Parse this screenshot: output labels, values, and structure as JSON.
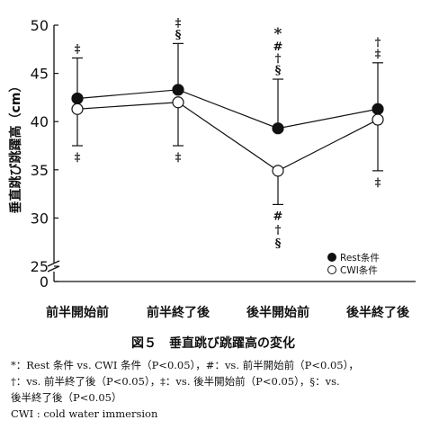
{
  "chart_data": {
    "type": "line",
    "ylabel": "垂直跳び跳躍高（cm）",
    "ylim": [
      25,
      50
    ],
    "yticks": [
      25,
      30,
      35,
      40,
      45,
      50
    ],
    "ybreak_label": "0",
    "categories": [
      "前半開始前",
      "前半終了後",
      "後半開始前",
      "後半終了後"
    ],
    "series": [
      {
        "name": "Rest条件",
        "marker": "filled",
        "values": [
          42.4,
          43.3,
          39.3,
          41.3
        ],
        "error_upper": [
          46.6,
          48.1,
          44.4,
          46.1
        ]
      },
      {
        "name": "CWI条件",
        "marker": "open",
        "values": [
          41.3,
          42.0,
          34.9,
          40.2
        ],
        "error_lower": [
          37.5,
          37.5,
          31.4,
          34.9
        ]
      }
    ],
    "annotations_above": [
      [
        "‡"
      ],
      [
        "‡",
        "§"
      ],
      [
        "*",
        "#",
        "†",
        "§"
      ],
      [
        "†",
        "‡"
      ]
    ],
    "annotations_below": [
      [
        "‡"
      ],
      [
        "‡"
      ],
      [
        "#",
        "†",
        "§"
      ],
      [
        "‡"
      ]
    ],
    "legend": "bottom-right"
  },
  "figure": {
    "title": "図５　垂直跳び跳躍高の変化",
    "note_lines": [
      "*：Rest 条件 vs. CWI 条件（P<0.05），#：vs. 前半開始前（P<0.05），",
      "†：vs. 前半終了後（P<0.05），‡：vs. 後半開始前（P<0.05），§：vs.",
      "後半終了後（P<0.05）"
    ],
    "footnote": "CWI : cold water immersion"
  },
  "colors": {
    "ink": "#111111",
    "background": "#ffffff"
  }
}
